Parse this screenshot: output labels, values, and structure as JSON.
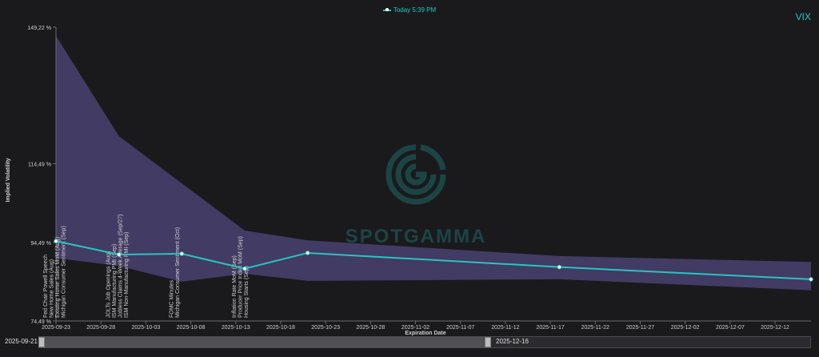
{
  "legend": {
    "label": "Today 5:39 PM"
  },
  "ticker": "VIX",
  "watermark": {
    "text": "SPOTGAMMA"
  },
  "slider": {
    "start_label": "2025-09-21",
    "end_label": "2025-12-16"
  },
  "colors": {
    "line": "#26c6c0",
    "band": "#4a4270",
    "background": "#1a1a1d",
    "accent": "#26c6c0"
  },
  "chart_data": {
    "type": "line",
    "title": "",
    "xlabel": "Expiration Date",
    "ylabel": "Implied Volatility",
    "ylim": [
      74.49,
      149.22
    ],
    "y_ticks": [
      "74,49 %",
      "94,49 %",
      "114,49 %",
      "149,22 %"
    ],
    "y_tick_values": [
      74.49,
      94.49,
      114.49,
      149.22
    ],
    "x_ticks": [
      "2025-09-23",
      "2025-09-28",
      "2025-10-03",
      "2025-10-08",
      "2025-10-13",
      "2025-10-18",
      "2025-10-23",
      "2025-10-28",
      "2025-11-02",
      "2025-11-07",
      "2025-11-12",
      "2025-11-17",
      "2025-11-22",
      "2025-11-27",
      "2025-12-02",
      "2025-12-07",
      "2025-12-12"
    ],
    "grid": false,
    "series": [
      {
        "name": "Today 5:39 PM",
        "x": [
          "2025-09-23",
          "2025-09-30",
          "2025-10-07",
          "2025-10-14",
          "2025-10-21",
          "2025-11-18",
          "2025-12-16"
        ],
        "values": [
          94.8,
          91.4,
          91.6,
          87.8,
          91.8,
          88.2,
          85.1
        ]
      }
    ],
    "band": {
      "x": [
        "2025-09-23",
        "2025-09-30",
        "2025-10-07",
        "2025-10-14",
        "2025-10-21",
        "2025-11-18",
        "2025-12-16"
      ],
      "upper": [
        147.0,
        121.5,
        109.5,
        97.5,
        95.0,
        91.0,
        89.5
      ],
      "lower": [
        90.5,
        88.5,
        84.5,
        86.5,
        84.7,
        85.1,
        82.3
      ]
    },
    "events": [
      {
        "x": "2025-09-23",
        "labels": [
          "Fed Chair Powell Speech",
          "New Home Sales (Aug)",
          "Existing Home Sales MoM (Aug)",
          "Michigan Consumer Sentiment (Sep)"
        ]
      },
      {
        "x": "2025-09-30",
        "labels": [
          "JOLTs Job Openings (Aug)",
          "ISM Manufacturing PMI (Sep)",
          "Jobless Claims 4-Week Average (Sep/27)",
          "ISM Non-Manufacturing PMI (Sep)"
        ]
      },
      {
        "x": "2025-10-07",
        "labels": [
          "FOMC Minutes",
          "Michigan Consumer Sentiment (Oct)"
        ]
      },
      {
        "x": "2025-10-14",
        "labels": [
          "Inflation Rate MoM (Sep)",
          "Producer Price Index MoM (Sep)",
          "Housing Starts (Sep)"
        ]
      }
    ]
  }
}
